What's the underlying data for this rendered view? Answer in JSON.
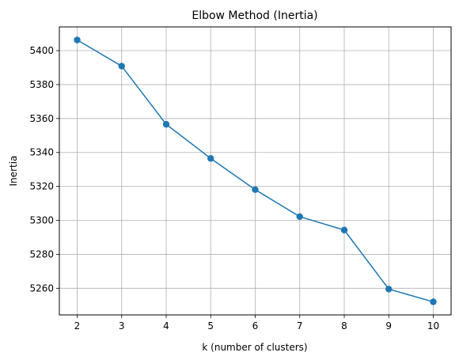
{
  "chart_data": {
    "type": "line",
    "title": "Elbow Method (Inertia)",
    "xlabel": "k (number of clusters)",
    "ylabel": "Inertia",
    "x": [
      2,
      3,
      4,
      5,
      6,
      7,
      8,
      9,
      10
    ],
    "series": [
      {
        "values": [
          5406.3,
          5390.9,
          5356.6,
          5336.5,
          5318.1,
          5302.2,
          5294.3,
          5259.5,
          5252.0
        ],
        "color": "#1f77b4",
        "marker": "circle"
      }
    ],
    "x_ticks": [
      2,
      3,
      4,
      5,
      6,
      7,
      8,
      9,
      10
    ],
    "y_ticks": [
      5260,
      5280,
      5300,
      5320,
      5340,
      5360,
      5380,
      5400
    ],
    "xlim": [
      1.6,
      10.4
    ],
    "ylim": [
      5244.3,
      5414.0
    ],
    "grid": true,
    "legend": "none"
  }
}
